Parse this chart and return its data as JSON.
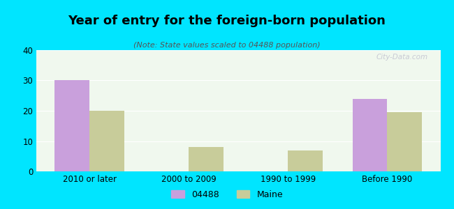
{
  "title": "Year of entry for the foreign-born population",
  "subtitle": "(Note: State values scaled to 04488 population)",
  "categories": [
    "2010 or later",
    "2000 to 2009",
    "1990 to 1999",
    "Before 1990"
  ],
  "series_04488": [
    30,
    0,
    0,
    24
  ],
  "series_maine": [
    20,
    8,
    7,
    19.5
  ],
  "bar_color_04488": "#c9a0dc",
  "bar_color_maine": "#c8cc9a",
  "ylim": [
    0,
    40
  ],
  "yticks": [
    0,
    10,
    20,
    30,
    40
  ],
  "background_outer": "#00e5ff",
  "background_inner": "#f0f8ee",
  "bar_width": 0.35,
  "legend_label_04488": "04488",
  "legend_label_maine": "Maine",
  "watermark": "City-Data.com"
}
